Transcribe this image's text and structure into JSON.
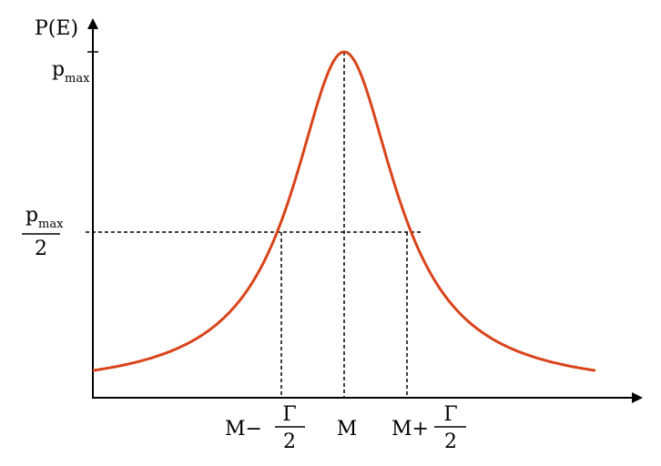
{
  "y_axis_label": "P(E)",
  "labels": {
    "p_max": {
      "symbol": "p",
      "subscript": "max"
    },
    "half_max": {
      "numerator": {
        "symbol": "p",
        "subscript": "max"
      },
      "denominator": "2"
    },
    "left": {
      "prefix": "M−",
      "numerator": "Γ",
      "denominator": "2"
    },
    "center": "M",
    "right": {
      "prefix": "M+",
      "numerator": "Γ",
      "denominator": "2"
    }
  }
}
